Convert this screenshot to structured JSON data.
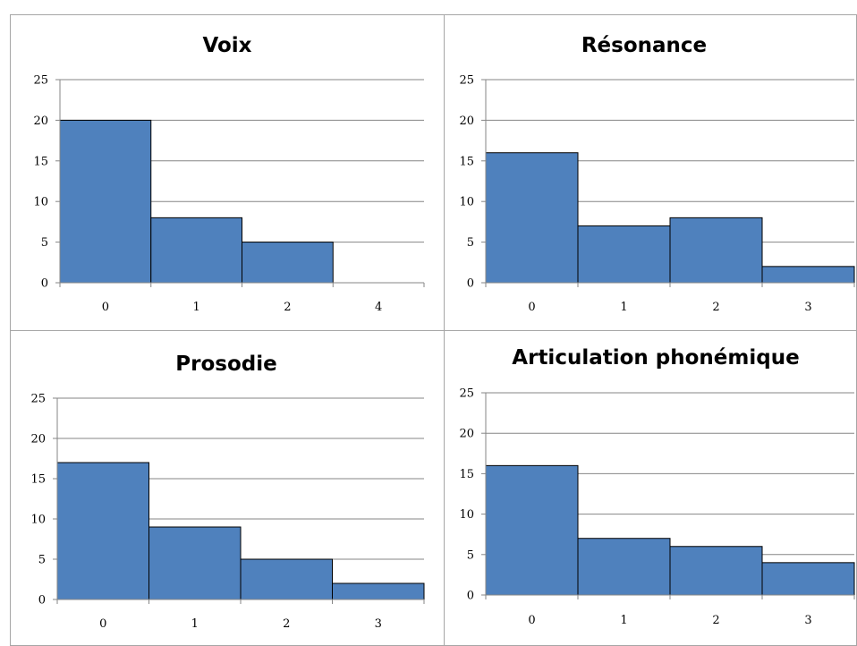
{
  "colors": {
    "bar_fill": "#4f81bd",
    "bar_stroke": "#000000",
    "gridline": "#868686",
    "panel_border": "#a6a6a6"
  },
  "chart_data": [
    {
      "type": "bar",
      "title": "Voix",
      "categories": [
        "0",
        "1",
        "2",
        "4"
      ],
      "values": [
        20,
        8,
        5,
        0
      ],
      "ylim": [
        0,
        25
      ],
      "yticks": [
        0,
        5,
        10,
        15,
        20,
        25
      ],
      "xlabel": "",
      "ylabel": "",
      "grid": true,
      "legend": "none"
    },
    {
      "type": "bar",
      "title": "Résonance",
      "categories": [
        "0",
        "1",
        "2",
        "3"
      ],
      "values": [
        16,
        7,
        8,
        2
      ],
      "ylim": [
        0,
        25
      ],
      "yticks": [
        0,
        5,
        10,
        15,
        20,
        25
      ],
      "xlabel": "",
      "ylabel": "",
      "grid": true,
      "legend": "none"
    },
    {
      "type": "bar",
      "title": "Prosodie",
      "categories": [
        "0",
        "1",
        "2",
        "3"
      ],
      "values": [
        17,
        9,
        5,
        2
      ],
      "ylim": [
        0,
        25
      ],
      "yticks": [
        0,
        5,
        10,
        15,
        20,
        25
      ],
      "xlabel": "",
      "ylabel": "",
      "grid": true,
      "legend": "none"
    },
    {
      "type": "bar",
      "title": "Articulation phonémique",
      "categories": [
        "0",
        "1",
        "2",
        "3"
      ],
      "values": [
        16,
        7,
        6,
        4
      ],
      "ylim": [
        0,
        25
      ],
      "yticks": [
        0,
        5,
        10,
        15,
        20,
        25
      ],
      "xlabel": "",
      "ylabel": "",
      "grid": true,
      "legend": "none"
    }
  ]
}
